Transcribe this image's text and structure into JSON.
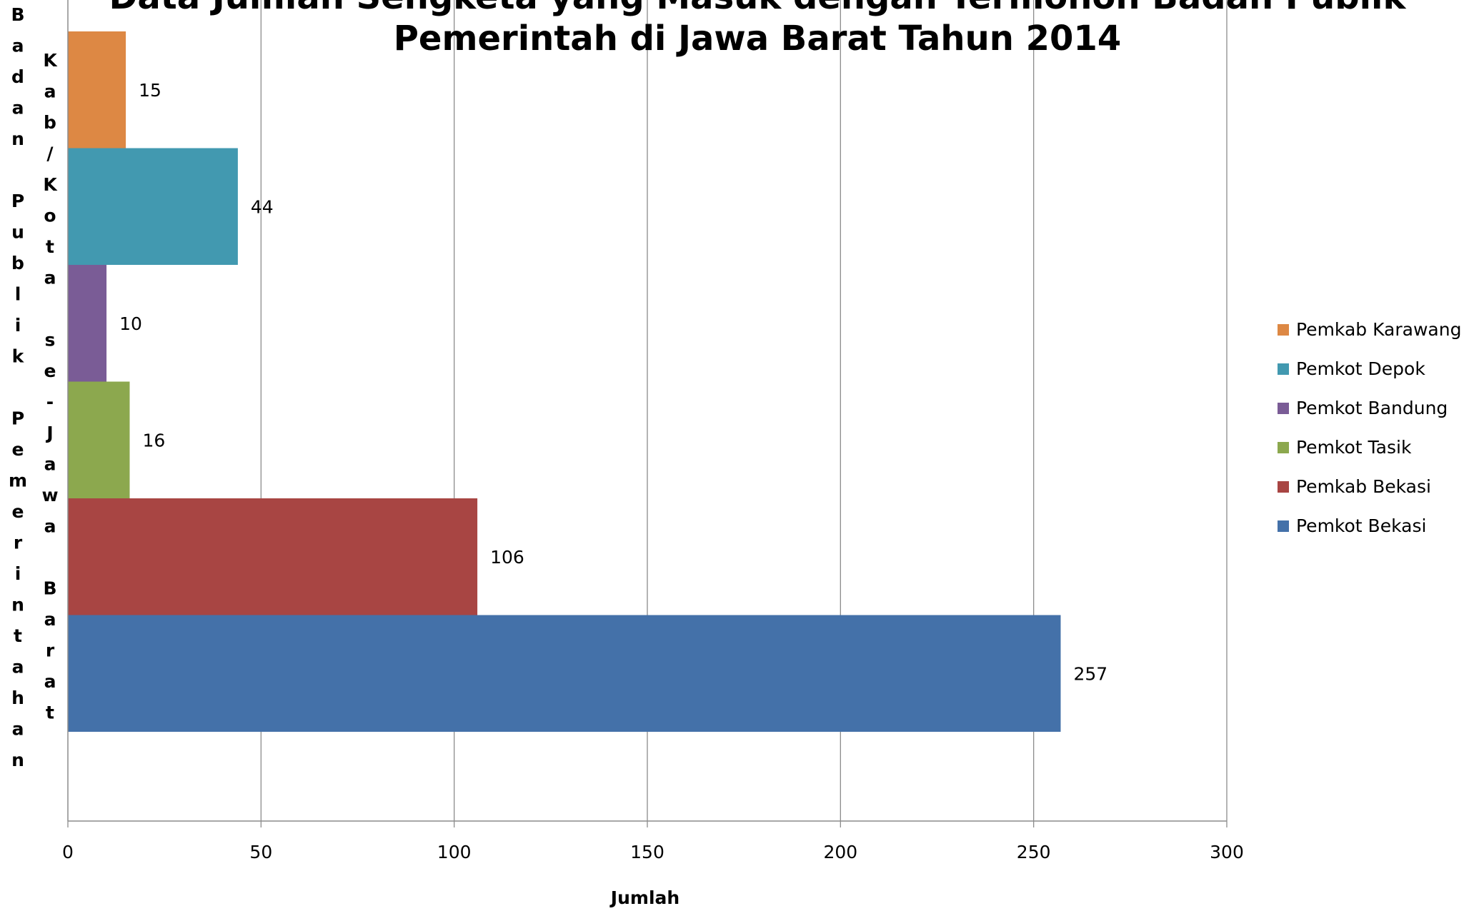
{
  "chart_data": {
    "type": "bar",
    "orientation": "horizontal",
    "title": "Data Jumlah Sengketa yang Masuk dengan Termohon Badan Publik Pemerintah di Jawa Barat Tahun 2014",
    "title_lines": [
      "Data Jumlah Sengketa yang Masuk dengan Termohon Badan Publik",
      "Pemerintah di Jawa Barat Tahun 2014"
    ],
    "ylabel": "Badan Publik Pemerintahan",
    "ylabel_inner": "Kab/Kota se-Jawa Barat",
    "xlabel": "Jumlah",
    "xlim": [
      0,
      300
    ],
    "xticks": [
      "0",
      "50",
      "100",
      "150",
      "200",
      "250",
      "300"
    ],
    "grid": true,
    "legend_position": "right",
    "series": [
      {
        "name": "Pemkab Karawang",
        "value": 15,
        "color": "#DD8844"
      },
      {
        "name": "Pemkot Depok",
        "value": 44,
        "color": "#4299B0"
      },
      {
        "name": "Pemkot Bandung",
        "value": 10,
        "color": "#7A5C96"
      },
      {
        "name": "Pemkot Tasik",
        "value": 16,
        "color": "#8CA84E"
      },
      {
        "name": "Pemkab Bekasi",
        "value": 106,
        "color": "#A84543"
      },
      {
        "name": "Pemkot Bekasi",
        "value": 257,
        "color": "#4471A9"
      }
    ]
  }
}
